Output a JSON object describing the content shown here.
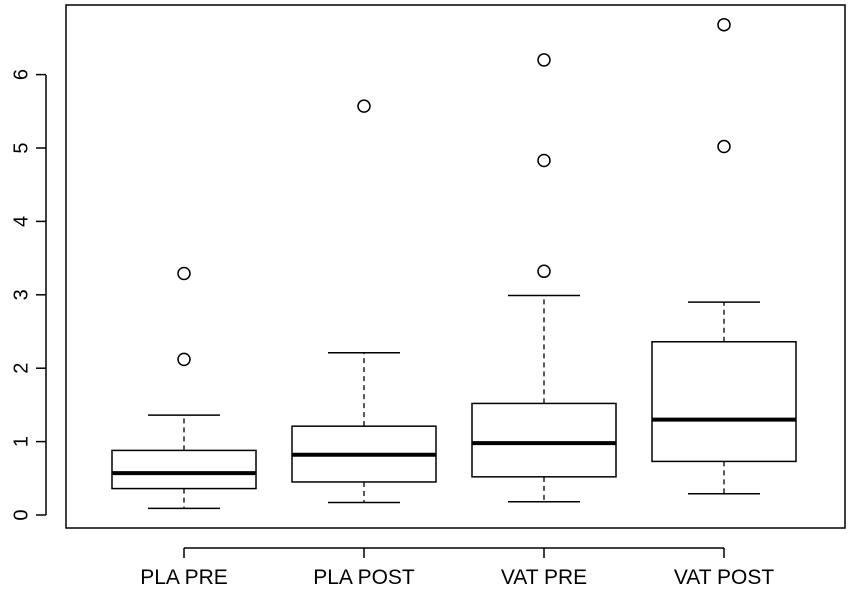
{
  "chart_data": {
    "type": "boxplot",
    "title": "",
    "xlabel": "",
    "ylabel": "",
    "ylim": [
      -0.2,
      7.0
    ],
    "yticks": [
      "0",
      "1",
      "2",
      "3",
      "4",
      "5",
      "6"
    ],
    "categories": [
      "PLA PRE",
      "PLA POST",
      "VAT PRE",
      "VAT POST"
    ],
    "boxes": [
      {
        "name": "PLA PRE",
        "whisker_low": 0.09,
        "q1": 0.36,
        "median": 0.57,
        "q3": 0.88,
        "whisker_high": 1.36,
        "outliers": [
          2.12,
          3.29
        ]
      },
      {
        "name": "PLA POST",
        "whisker_low": 0.17,
        "q1": 0.45,
        "median": 0.82,
        "q3": 1.21,
        "whisker_high": 2.21,
        "outliers": [
          5.57
        ]
      },
      {
        "name": "VAT PRE",
        "whisker_low": 0.18,
        "q1": 0.52,
        "median": 0.98,
        "q3": 1.52,
        "whisker_high": 2.99,
        "outliers": [
          3.32,
          4.83,
          6.2
        ]
      },
      {
        "name": "VAT POST",
        "whisker_low": 0.29,
        "q1": 0.73,
        "median": 1.3,
        "q3": 2.36,
        "whisker_high": 2.9,
        "outliers": [
          5.02,
          6.68
        ]
      }
    ],
    "grid": false,
    "legend": "none"
  }
}
